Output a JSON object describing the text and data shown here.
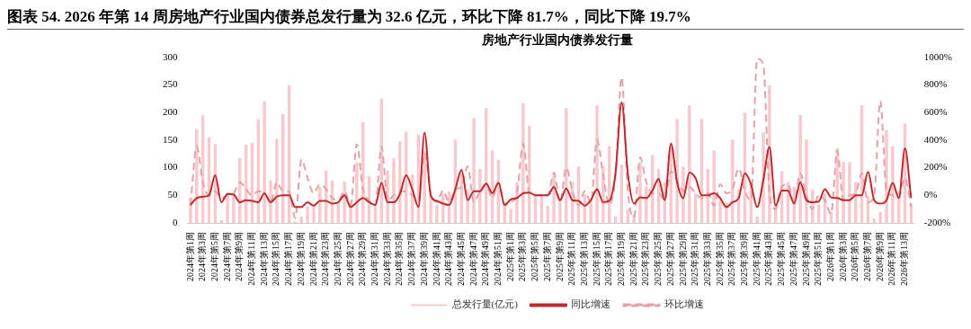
{
  "chart_data": {
    "type": "bar",
    "title": "房地产行业国内债券发行量",
    "categories": [
      "2024年第1周",
      null,
      "2024年第3周",
      null,
      "2024年第5周",
      null,
      "2024年第7周",
      null,
      "2024年第9周",
      null,
      "2024年第11周",
      null,
      "2024年第13周",
      null,
      "2024年第15周",
      null,
      "2024年第17周",
      null,
      "2024年第19周",
      null,
      "2024年第21周",
      null,
      "2024年第23周",
      null,
      "2024年第25周",
      null,
      "2024年第27周",
      null,
      "2024年第29周",
      null,
      "2024年第31周",
      null,
      "2024年第33周",
      null,
      "2024年第35周",
      null,
      "2024年第37周",
      null,
      "2024年第39周",
      null,
      "2024年第41周",
      null,
      "2024年第43周",
      null,
      "2024年第45周",
      null,
      "2024年第47周",
      null,
      "2024年第49周",
      null,
      "2024年第51周",
      null,
      "2025年第1周",
      null,
      "2025年第3周",
      null,
      "2025年第5周",
      null,
      "2025年第7周",
      null,
      "2025年第9周",
      null,
      "2025年第11周",
      null,
      "2025年第13周",
      null,
      "2025年第15周",
      null,
      "2025年第17周",
      null,
      "2025年第19周",
      null,
      "2025年第21周",
      null,
      "2025年第23周",
      null,
      "2025年第25周",
      null,
      "2025年第27周",
      null,
      "2025年第29周",
      null,
      "2025年第31周",
      null,
      "2025年第33周",
      null,
      "2025年第35周",
      null,
      "2025年第37周",
      null,
      "2025年第39周",
      null,
      "2025年第41周",
      null,
      "2025年第43周",
      null,
      "2025年第45周",
      null,
      "2025年第47周",
      null,
      "2025年第49周",
      null,
      "2025年第51周",
      null,
      "2026年第1周",
      null,
      "2026年第3周",
      null,
      "2026年第5周",
      null,
      "2026年第7周",
      null,
      "2026年第9周",
      null,
      "2026年第11周",
      null,
      "2026年第13周",
      null
    ],
    "series": [
      {
        "name": "总发行量(亿元)",
        "color": "#f7c9cc",
        "values": [
          45,
          170,
          195,
          155,
          143,
          5,
          50,
          50,
          118,
          142,
          145,
          188,
          220,
          77,
          152,
          197,
          250,
          3,
          12,
          30,
          35,
          65,
          95,
          77,
          40,
          75,
          40,
          110,
          183,
          85,
          35,
          225,
          95,
          117,
          148,
          165,
          88,
          160,
          130,
          50,
          33,
          53,
          57,
          151,
          90,
          61,
          190,
          98,
          208,
          131,
          114,
          37,
          25,
          74,
          217,
          176,
          49,
          53,
          31,
          90,
          41,
          208,
          74,
          102,
          53,
          41,
          213,
          102,
          139,
          12,
          106,
          25,
          16,
          110,
          65,
          123,
          98,
          74,
          139,
          188,
          102,
          213,
          53,
          188,
          98,
          131,
          45,
          37,
          151,
          61,
          200,
          74,
          12,
          164,
          249,
          33,
          94,
          74,
          65,
          196,
          151,
          61,
          33,
          53,
          20,
          135,
          110,
          110,
          74,
          213,
          49,
          8,
          20,
          168,
          139,
          57,
          180,
          33
        ]
      },
      {
        "name": "同比增速",
        "type": "line",
        "axis": "y2",
        "line_style": "solid",
        "color": "#c0282b",
        "values": [
          -70,
          -20,
          -10,
          0,
          145,
          -50,
          10,
          5,
          -50,
          -35,
          -40,
          -50,
          15,
          -50,
          -10,
          0,
          0,
          -85,
          -85,
          -50,
          -75,
          -40,
          -40,
          -60,
          -50,
          0,
          -85,
          -50,
          -20,
          -50,
          -70,
          90,
          -50,
          -50,
          10,
          145,
          45,
          -85,
          455,
          0,
          -40,
          -60,
          -70,
          45,
          185,
          -35,
          30,
          30,
          85,
          15,
          90,
          -70,
          -30,
          -20,
          15,
          20,
          0,
          0,
          0,
          60,
          -35,
          50,
          -35,
          -40,
          -75,
          -35,
          45,
          -50,
          -40,
          160,
          675,
          160,
          -60,
          -15,
          -20,
          35,
          120,
          -35,
          375,
          95,
          -20,
          165,
          125,
          0,
          0,
          15,
          -20,
          -85,
          -50,
          -20,
          160,
          80,
          -85,
          110,
          350,
          -75,
          35,
          35,
          -60,
          95,
          -35,
          -50,
          -45,
          45,
          -15,
          -20,
          -35,
          -35,
          0,
          0,
          170,
          -35,
          -60,
          -35,
          90,
          -20,
          340,
          -20
        ]
      },
      {
        "name": "环比增速",
        "type": "line",
        "axis": "y2",
        "line_style": "dashed",
        "color": "#e2a3a8",
        "values": [
          -70,
          355,
          95,
          0,
          30,
          -20,
          0,
          15,
          95,
          45,
          0,
          30,
          15,
          -50,
          95,
          30,
          30,
          -165,
          260,
          125,
          15,
          80,
          45,
          -20,
          -35,
          30,
          -70,
          370,
          45,
          -35,
          -70,
          355,
          -35,
          0,
          30,
          30,
          0,
          -35,
          305,
          15,
          -50,
          35,
          -50,
          45,
          60,
          210,
          -50,
          30,
          80,
          -20,
          95,
          -70,
          -50,
          15,
          375,
          15,
          0,
          0,
          0,
          165,
          -50,
          200,
          30,
          -70,
          30,
          -50,
          405,
          145,
          -70,
          145,
          855,
          30,
          -160,
          275,
          95,
          15,
          15,
          -35,
          175,
          110,
          30,
          60,
          15,
          -20,
          15,
          -75,
          80,
          15,
          45,
          195,
          30,
          -35,
          990,
          945,
          15,
          -100,
          60,
          80,
          -50,
          160,
          0,
          -100,
          0,
          -35,
          -135,
          325,
          -35,
          0,
          15,
          160,
          -50,
          0,
          685,
          30,
          0,
          -20,
          125,
          -82
        ]
      }
    ],
    "ylim": [
      0,
      300
    ],
    "yticks": [
      0,
      50,
      100,
      150,
      200,
      250,
      300
    ],
    "y2lim": [
      -200,
      1000
    ],
    "y2ticks": [
      {
        "value": -200,
        "label": "-200%"
      },
      {
        "value": 0,
        "label": "0%"
      },
      {
        "value": 200,
        "label": "200%"
      },
      {
        "value": 400,
        "label": "400%"
      },
      {
        "value": 600,
        "label": "600%"
      },
      {
        "value": 800,
        "label": "800%"
      },
      {
        "value": 1000,
        "label": "1000%"
      }
    ],
    "grid": false,
    "legend": "bottom",
    "marker": "none",
    "annotations": [
      "图表 54. 2026 年第 14 周房地产行业国内债券总发行量为 32.6 亿元，环比下降 81.7%，同比下降 19.7%"
    ]
  }
}
